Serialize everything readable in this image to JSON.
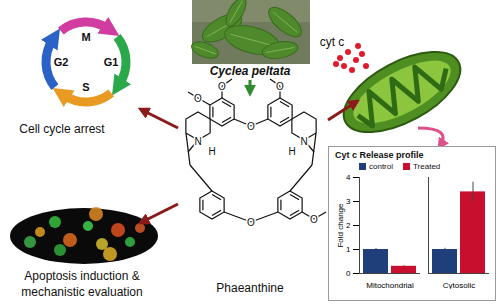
{
  "diagram": {
    "source": {
      "label": "Cyclea peltata"
    },
    "compound": {
      "label": "Phaeanthine",
      "atoms": [
        "O",
        "O",
        "O",
        "O",
        "O",
        "O",
        "N",
        "N",
        "H",
        "H"
      ]
    },
    "cell_cycle": {
      "label": "Cell cycle arrest",
      "phases": [
        "M",
        "G1",
        "S",
        "G2"
      ]
    },
    "apoptosis": {
      "label": [
        "Apoptosis induction &",
        "mechanistic evaluation"
      ]
    },
    "mitochondrion": {
      "label": "cyt c"
    }
  },
  "chart_data": {
    "type": "bar",
    "title": "Cyt c Release profile",
    "categories": [
      "Mitochondrial",
      "Cytosolic"
    ],
    "series": [
      {
        "name": "control",
        "color": "#1f3f7a",
        "values": [
          1,
          1
        ],
        "errors": [
          0.04,
          0.05
        ]
      },
      {
        "name": "Treated",
        "color": "#c8102e",
        "values": [
          0.3,
          3.4
        ],
        "errors": [
          0.02,
          0.4
        ]
      }
    ],
    "y_label": "Fold change",
    "ylim": [
      0,
      4
    ],
    "yticks": [
      0,
      1,
      2,
      3,
      4
    ],
    "legend": "top"
  }
}
